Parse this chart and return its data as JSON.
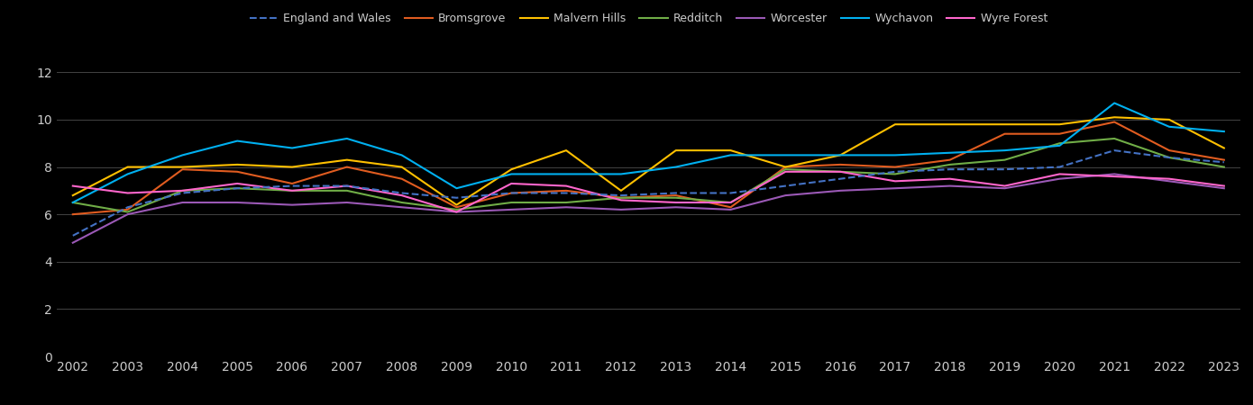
{
  "years": [
    2002,
    2003,
    2004,
    2005,
    2006,
    2007,
    2008,
    2009,
    2010,
    2011,
    2012,
    2013,
    2014,
    2015,
    2016,
    2017,
    2018,
    2019,
    2020,
    2021,
    2022,
    2023
  ],
  "england_wales": [
    5.1,
    6.3,
    6.9,
    7.1,
    7.2,
    7.2,
    6.9,
    6.7,
    6.9,
    6.9,
    6.8,
    6.9,
    6.9,
    7.2,
    7.5,
    7.8,
    7.9,
    7.9,
    8.0,
    8.7,
    8.4,
    8.2
  ],
  "bromsgrove": [
    6.0,
    6.2,
    7.9,
    7.8,
    7.3,
    8.0,
    7.5,
    6.3,
    6.9,
    7.0,
    6.7,
    6.8,
    6.3,
    8.0,
    8.1,
    8.0,
    8.3,
    9.4,
    9.4,
    9.9,
    8.7,
    8.3
  ],
  "malvern_hills": [
    6.8,
    8.0,
    8.0,
    8.1,
    8.0,
    8.3,
    8.0,
    6.4,
    7.9,
    8.7,
    7.0,
    8.7,
    8.7,
    8.0,
    8.5,
    9.8,
    9.8,
    9.8,
    9.8,
    10.1,
    10.0,
    8.8
  ],
  "redditch": [
    6.5,
    6.1,
    7.0,
    7.1,
    7.0,
    7.0,
    6.5,
    6.2,
    6.5,
    6.5,
    6.7,
    6.7,
    6.5,
    7.9,
    7.8,
    7.7,
    8.1,
    8.3,
    9.0,
    9.2,
    8.4,
    8.0
  ],
  "worcester": [
    4.8,
    6.0,
    6.5,
    6.5,
    6.4,
    6.5,
    6.3,
    6.1,
    6.2,
    6.3,
    6.2,
    6.3,
    6.2,
    6.8,
    7.0,
    7.1,
    7.2,
    7.1,
    7.5,
    7.7,
    7.4,
    7.1
  ],
  "wychavon": [
    6.5,
    7.7,
    8.5,
    9.1,
    8.8,
    9.2,
    8.5,
    7.1,
    7.7,
    7.7,
    7.7,
    8.0,
    8.5,
    8.5,
    8.5,
    8.5,
    8.6,
    8.7,
    8.9,
    10.7,
    9.7,
    9.5
  ],
  "wyre_forest": [
    7.2,
    6.9,
    7.0,
    7.3,
    7.0,
    7.2,
    6.8,
    6.1,
    7.3,
    7.2,
    6.6,
    6.5,
    6.5,
    7.8,
    7.8,
    7.4,
    7.5,
    7.2,
    7.7,
    7.6,
    7.5,
    7.2
  ],
  "series_colors": {
    "england_wales": "#4472c4",
    "bromsgrove": "#e05c20",
    "malvern_hills": "#ffc000",
    "redditch": "#70ad47",
    "worcester": "#9b59b6",
    "wychavon": "#00b0f0",
    "wyre_forest": "#ff66cc"
  },
  "ylim": [
    0,
    13
  ],
  "yticks": [
    0,
    2,
    4,
    6,
    8,
    10,
    12
  ],
  "background_color": "#000000",
  "text_color": "#cccccc",
  "grid_color": "#444444"
}
